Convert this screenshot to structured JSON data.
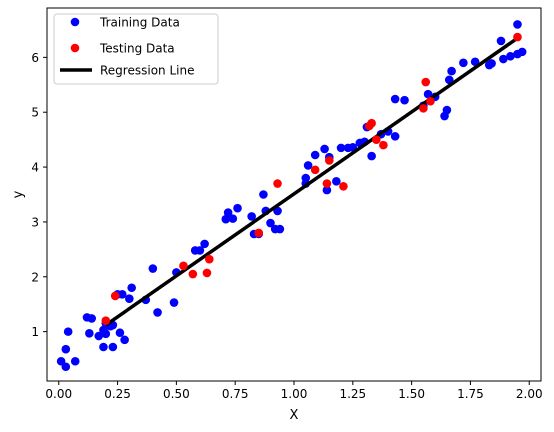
{
  "chart_data": {
    "type": "scatter",
    "title": "",
    "xlabel": "X",
    "ylabel": "y",
    "xlim": [
      -0.05,
      2.05
    ],
    "ylim": [
      0.1,
      6.9
    ],
    "xticks": [
      {
        "value": 0.0,
        "label": "0.00"
      },
      {
        "value": 0.25,
        "label": "0.25"
      },
      {
        "value": 0.5,
        "label": "0.50"
      },
      {
        "value": 0.75,
        "label": "0.75"
      },
      {
        "value": 1.0,
        "label": "1.00"
      },
      {
        "value": 1.25,
        "label": "1.25"
      },
      {
        "value": 1.5,
        "label": "1.50"
      },
      {
        "value": 1.75,
        "label": "1.75"
      },
      {
        "value": 2.0,
        "label": "2.00"
      }
    ],
    "yticks": [
      {
        "value": 1,
        "label": "1"
      },
      {
        "value": 2,
        "label": "2"
      },
      {
        "value": 3,
        "label": "3"
      },
      {
        "value": 4,
        "label": "4"
      },
      {
        "value": 5,
        "label": "5"
      },
      {
        "value": 6,
        "label": "6"
      }
    ],
    "grid": false,
    "legend_position": "upper-left",
    "series": [
      {
        "name": "Training Data",
        "kind": "scatter",
        "color": "#0000ff",
        "points": [
          [
            0.01,
            0.46
          ],
          [
            0.03,
            0.36
          ],
          [
            0.03,
            0.68
          ],
          [
            0.04,
            1.0
          ],
          [
            0.07,
            0.46
          ],
          [
            0.12,
            1.26
          ],
          [
            0.14,
            1.24
          ],
          [
            0.13,
            0.97
          ],
          [
            0.17,
            0.92
          ],
          [
            0.19,
            0.72
          ],
          [
            0.19,
            1.03
          ],
          [
            0.2,
            0.96
          ],
          [
            0.2,
            1.15
          ],
          [
            0.22,
            1.1
          ],
          [
            0.23,
            0.72
          ],
          [
            0.23,
            1.12
          ],
          [
            0.25,
            1.68
          ],
          [
            0.26,
            0.98
          ],
          [
            0.27,
            1.68
          ],
          [
            0.28,
            0.85
          ],
          [
            0.3,
            1.6
          ],
          [
            0.31,
            1.8
          ],
          [
            0.37,
            1.58
          ],
          [
            0.4,
            2.15
          ],
          [
            0.42,
            1.35
          ],
          [
            0.49,
            1.53
          ],
          [
            0.5,
            2.08
          ],
          [
            0.58,
            2.48
          ],
          [
            0.6,
            2.48
          ],
          [
            0.62,
            2.6
          ],
          [
            0.71,
            3.05
          ],
          [
            0.72,
            3.17
          ],
          [
            0.74,
            3.06
          ],
          [
            0.76,
            3.25
          ],
          [
            0.82,
            3.1
          ],
          [
            0.83,
            2.78
          ],
          [
            0.85,
            2.78
          ],
          [
            0.87,
            3.5
          ],
          [
            0.88,
            3.2
          ],
          [
            0.9,
            2.98
          ],
          [
            0.92,
            2.87
          ],
          [
            0.93,
            3.2
          ],
          [
            0.94,
            2.87
          ],
          [
            1.05,
            3.7
          ],
          [
            1.05,
            3.8
          ],
          [
            1.06,
            4.03
          ],
          [
            1.09,
            4.22
          ],
          [
            1.13,
            4.33
          ],
          [
            1.14,
            3.58
          ],
          [
            1.15,
            4.18
          ],
          [
            1.18,
            3.74
          ],
          [
            1.2,
            4.35
          ],
          [
            1.23,
            4.35
          ],
          [
            1.25,
            4.36
          ],
          [
            1.28,
            4.44
          ],
          [
            1.3,
            4.46
          ],
          [
            1.31,
            4.73
          ],
          [
            1.33,
            4.2
          ],
          [
            1.37,
            4.6
          ],
          [
            1.4,
            4.65
          ],
          [
            1.43,
            4.56
          ],
          [
            1.43,
            5.24
          ],
          [
            1.47,
            5.22
          ],
          [
            1.55,
            5.12
          ],
          [
            1.57,
            5.33
          ],
          [
            1.6,
            5.28
          ],
          [
            1.64,
            4.93
          ],
          [
            1.65,
            5.04
          ],
          [
            1.66,
            5.59
          ],
          [
            1.67,
            5.75
          ],
          [
            1.72,
            5.9
          ],
          [
            1.77,
            5.92
          ],
          [
            1.83,
            5.86
          ],
          [
            1.84,
            5.89
          ],
          [
            1.88,
            6.3
          ],
          [
            1.89,
            5.97
          ],
          [
            1.92,
            6.02
          ],
          [
            1.95,
            6.6
          ],
          [
            1.95,
            6.06
          ],
          [
            1.97,
            6.1
          ]
        ]
      },
      {
        "name": "Testing Data",
        "kind": "scatter",
        "color": "#ff0000",
        "points": [
          [
            0.2,
            1.2
          ],
          [
            0.24,
            1.65
          ],
          [
            0.53,
            2.2
          ],
          [
            0.57,
            2.05
          ],
          [
            0.63,
            2.07
          ],
          [
            0.64,
            2.32
          ],
          [
            0.85,
            2.8
          ],
          [
            0.93,
            3.7
          ],
          [
            1.09,
            3.95
          ],
          [
            1.14,
            3.7
          ],
          [
            1.15,
            4.12
          ],
          [
            1.21,
            3.65
          ],
          [
            1.32,
            4.75
          ],
          [
            1.33,
            4.8
          ],
          [
            1.35,
            4.5
          ],
          [
            1.38,
            4.4
          ],
          [
            1.55,
            5.07
          ],
          [
            1.56,
            5.55
          ],
          [
            1.58,
            5.2
          ],
          [
            1.95,
            6.37
          ]
        ]
      },
      {
        "name": "Regression Line",
        "kind": "line",
        "color": "#000000",
        "points": [
          [
            0.2,
            1.12
          ],
          [
            1.96,
            6.38
          ]
        ]
      }
    ]
  }
}
